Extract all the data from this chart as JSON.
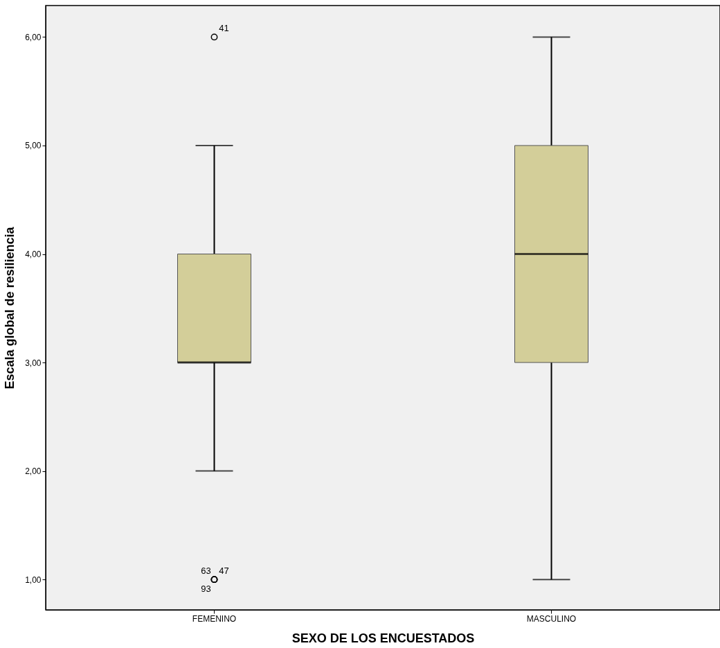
{
  "chart_data": {
    "type": "box",
    "xlabel": "SEXO DE LOS ENCUESTADOS",
    "ylabel": "Escala global de resiliencia",
    "categories": [
      "FEMENINO",
      "MASCULINO"
    ],
    "boxes": [
      {
        "low": 2,
        "q1": 3,
        "median": 3,
        "q3": 4,
        "high": 5,
        "outliers": [
          6,
          1,
          1,
          1
        ]
      },
      {
        "low": 1,
        "q1": 3,
        "median": 4,
        "q3": 5,
        "high": 6
      }
    ],
    "color": "#d3ce99",
    "ylim": [
      0.72,
      6.29
    ],
    "yticks": [
      {
        "value": 1,
        "label": "1,00"
      },
      {
        "value": 2,
        "label": "2,00"
      },
      {
        "value": 3,
        "label": "3,00"
      },
      {
        "value": 4,
        "label": "4,00"
      },
      {
        "value": 5,
        "label": "5,00"
      },
      {
        "value": 6,
        "label": "6,00"
      }
    ],
    "grid": false,
    "annotations": [
      "41",
      "47",
      "63",
      "93"
    ]
  }
}
